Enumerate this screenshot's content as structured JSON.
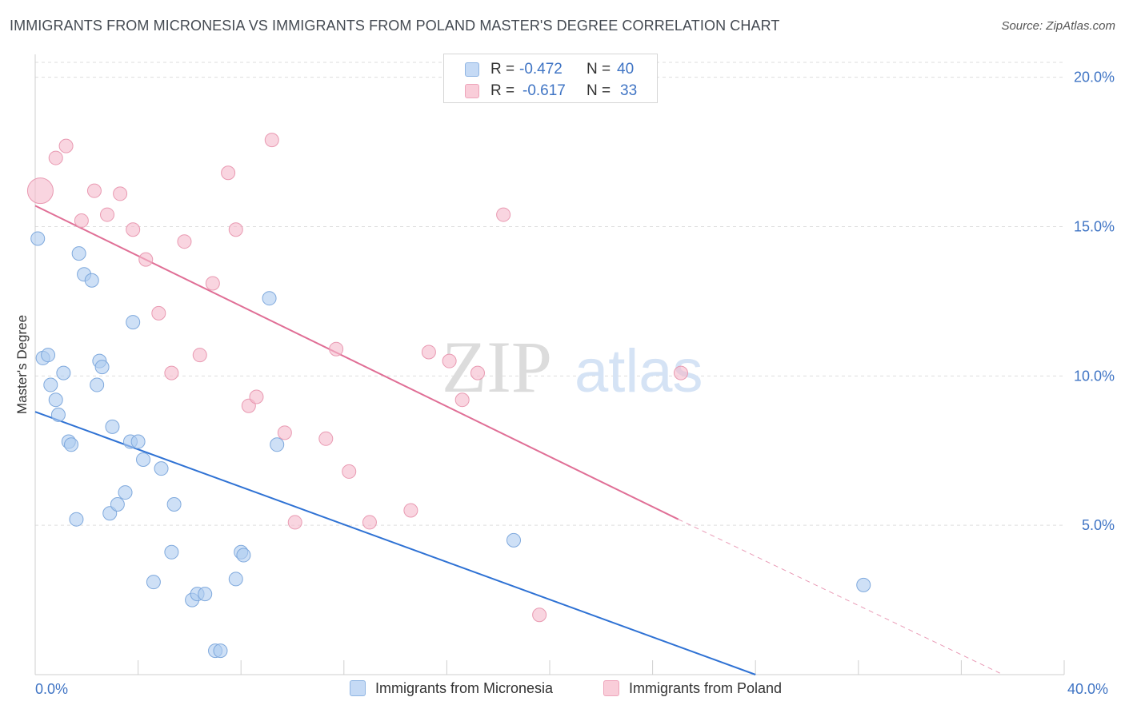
{
  "title": "IMMIGRANTS FROM MICRONESIA VS IMMIGRANTS FROM POLAND MASTER'S DEGREE CORRELATION CHART",
  "source": "Source: ZipAtlas.com",
  "watermark": {
    "zip": "ZIP",
    "atlas": "atlas"
  },
  "legend": {
    "r_label": "R =",
    "n_label": "N =",
    "rows": [
      {
        "r": "-0.472",
        "n": "40",
        "color": "#aecbf0"
      },
      {
        "r": "-0.617",
        "n": "33",
        "color": "#f5b9cb"
      }
    ]
  },
  "chart_data": {
    "type": "scatter",
    "title": "IMMIGRANTS FROM MICRONESIA VS IMMIGRANTS FROM POLAND MASTER'S DEGREE CORRELATION CHART",
    "xlabel": "",
    "ylabel": "Master's Degree",
    "xlim": [
      0,
      40
    ],
    "ylim": [
      0,
      20.5
    ],
    "x_tick_labels": [
      "0.0%",
      "40.0%"
    ],
    "y_ticks": [
      5,
      10,
      15,
      20
    ],
    "y_tick_labels": [
      "5.0%",
      "10.0%",
      "15.0%",
      "20.0%"
    ],
    "grid": true,
    "legend_position": "top-center",
    "series": [
      {
        "name": "Immigrants from Micronesia",
        "color": "#aecbf0",
        "edge_color": "#7fa9dd",
        "line_color": "#2f72d4",
        "trend": {
          "x": [
            0,
            28
          ],
          "y": [
            8.8,
            0
          ]
        },
        "points": [
          {
            "x": 0.1,
            "y": 14.6
          },
          {
            "x": 0.3,
            "y": 10.6
          },
          {
            "x": 0.5,
            "y": 10.7
          },
          {
            "x": 0.6,
            "y": 9.7
          },
          {
            "x": 0.8,
            "y": 9.2
          },
          {
            "x": 0.9,
            "y": 8.7
          },
          {
            "x": 1.1,
            "y": 10.1
          },
          {
            "x": 1.3,
            "y": 7.8
          },
          {
            "x": 1.4,
            "y": 7.7
          },
          {
            "x": 1.6,
            "y": 5.2
          },
          {
            "x": 1.7,
            "y": 14.1
          },
          {
            "x": 1.9,
            "y": 13.4
          },
          {
            "x": 2.2,
            "y": 13.2
          },
          {
            "x": 2.4,
            "y": 9.7
          },
          {
            "x": 2.5,
            "y": 10.5
          },
          {
            "x": 2.6,
            "y": 10.3
          },
          {
            "x": 2.9,
            "y": 5.4
          },
          {
            "x": 3.0,
            "y": 8.3
          },
          {
            "x": 3.2,
            "y": 5.7
          },
          {
            "x": 3.5,
            "y": 6.1
          },
          {
            "x": 3.7,
            "y": 7.8
          },
          {
            "x": 3.8,
            "y": 11.8
          },
          {
            "x": 4.0,
            "y": 7.8
          },
          {
            "x": 4.2,
            "y": 7.2
          },
          {
            "x": 4.6,
            "y": 3.1
          },
          {
            "x": 4.9,
            "y": 6.9
          },
          {
            "x": 5.3,
            "y": 4.1
          },
          {
            "x": 5.4,
            "y": 5.7
          },
          {
            "x": 6.1,
            "y": 2.5
          },
          {
            "x": 6.3,
            "y": 2.7
          },
          {
            "x": 6.6,
            "y": 2.7
          },
          {
            "x": 7.0,
            "y": 0.8
          },
          {
            "x": 7.2,
            "y": 0.8
          },
          {
            "x": 7.8,
            "y": 3.2
          },
          {
            "x": 8.0,
            "y": 4.1
          },
          {
            "x": 8.1,
            "y": 4.0
          },
          {
            "x": 9.1,
            "y": 12.6
          },
          {
            "x": 9.4,
            "y": 7.7
          },
          {
            "x": 18.6,
            "y": 4.5
          },
          {
            "x": 32.2,
            "y": 3.0
          }
        ]
      },
      {
        "name": "Immigrants from Poland",
        "color": "#f5b9cb",
        "edge_color": "#e99ab2",
        "line_color": "#e06f96",
        "trend": {
          "x": [
            0,
            25
          ],
          "y": [
            15.7,
            5.2
          ]
        },
        "trend_dashed": {
          "x": [
            25,
            37.5
          ],
          "y": [
            5.2,
            0.05
          ]
        },
        "points": [
          {
            "x": 0.2,
            "y": 16.2,
            "big": true
          },
          {
            "x": 0.8,
            "y": 17.3
          },
          {
            "x": 1.2,
            "y": 17.7
          },
          {
            "x": 1.8,
            "y": 15.2
          },
          {
            "x": 2.3,
            "y": 16.2
          },
          {
            "x": 2.8,
            "y": 15.4
          },
          {
            "x": 3.3,
            "y": 16.1
          },
          {
            "x": 3.8,
            "y": 14.9
          },
          {
            "x": 4.3,
            "y": 13.9
          },
          {
            "x": 4.8,
            "y": 12.1
          },
          {
            "x": 5.3,
            "y": 10.1
          },
          {
            "x": 5.8,
            "y": 14.5
          },
          {
            "x": 6.4,
            "y": 10.7
          },
          {
            "x": 6.9,
            "y": 13.1
          },
          {
            "x": 7.5,
            "y": 16.8
          },
          {
            "x": 7.8,
            "y": 14.9
          },
          {
            "x": 8.3,
            "y": 9.0
          },
          {
            "x": 8.6,
            "y": 9.3
          },
          {
            "x": 9.2,
            "y": 17.9
          },
          {
            "x": 9.7,
            "y": 8.1
          },
          {
            "x": 10.1,
            "y": 5.1
          },
          {
            "x": 11.3,
            "y": 7.9
          },
          {
            "x": 11.7,
            "y": 10.9
          },
          {
            "x": 12.2,
            "y": 6.8
          },
          {
            "x": 13.0,
            "y": 5.1
          },
          {
            "x": 14.6,
            "y": 5.5
          },
          {
            "x": 15.3,
            "y": 10.8
          },
          {
            "x": 16.1,
            "y": 10.5
          },
          {
            "x": 16.6,
            "y": 9.2
          },
          {
            "x": 17.2,
            "y": 10.1
          },
          {
            "x": 18.2,
            "y": 15.4
          },
          {
            "x": 19.6,
            "y": 2.0
          },
          {
            "x": 25.1,
            "y": 10.1
          }
        ]
      }
    ]
  }
}
